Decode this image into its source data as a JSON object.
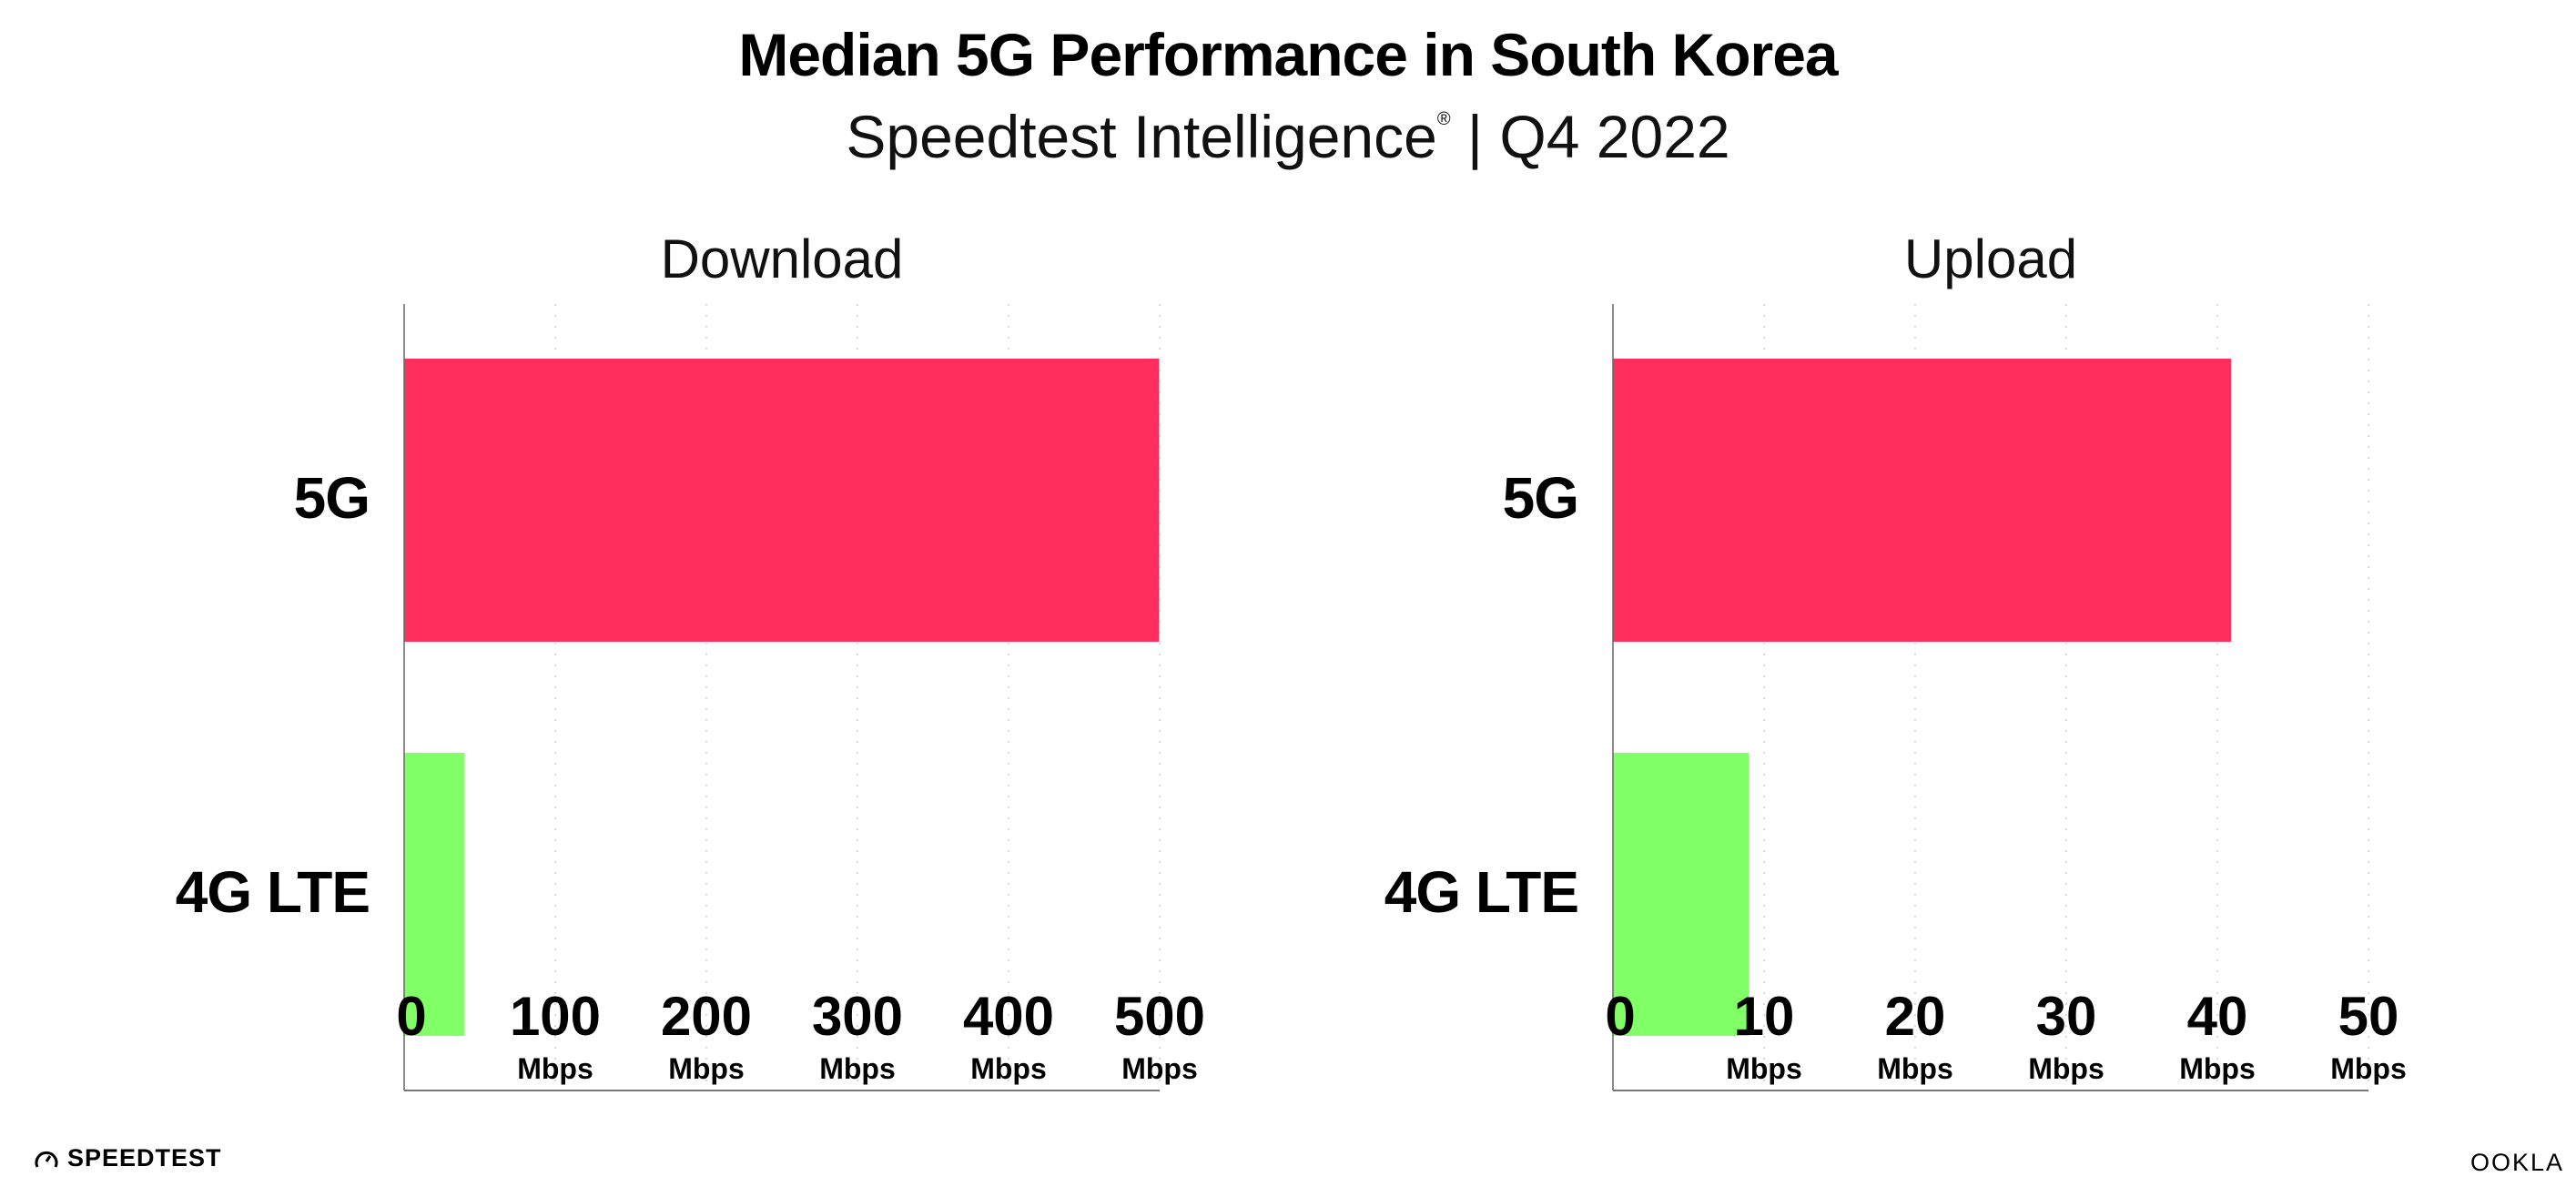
{
  "title": "Median 5G Performance in South Korea",
  "subtitle": {
    "text": "Speedtest Intelligence",
    "mark": "®",
    "period": " | Q4 2022"
  },
  "footer": {
    "left_logo": "SPEEDTEST",
    "right_logo": "OOKLA"
  },
  "chart_data": [
    {
      "type": "bar",
      "orientation": "horizontal",
      "title": "Download",
      "categories": [
        "5G",
        "4G LTE"
      ],
      "values": [
        499.5,
        40
      ],
      "colors": [
        "#ff2e5c",
        "#80ff66"
      ],
      "xlim": [
        0,
        500
      ],
      "ticks": [
        "0",
        "100",
        "200",
        "300",
        "400",
        "500"
      ],
      "tick_unit": "Mbps",
      "grid": true
    },
    {
      "type": "bar",
      "orientation": "horizontal",
      "title": "Upload",
      "categories": [
        "5G",
        "4G LTE"
      ],
      "values": [
        40.9,
        9.0
      ],
      "colors": [
        "#ff2e5c",
        "#80ff66"
      ],
      "xlim": [
        0,
        50
      ],
      "ticks": [
        "0",
        "10",
        "20",
        "30",
        "40",
        "50"
      ],
      "tick_unit": "Mbps",
      "grid": true
    }
  ]
}
